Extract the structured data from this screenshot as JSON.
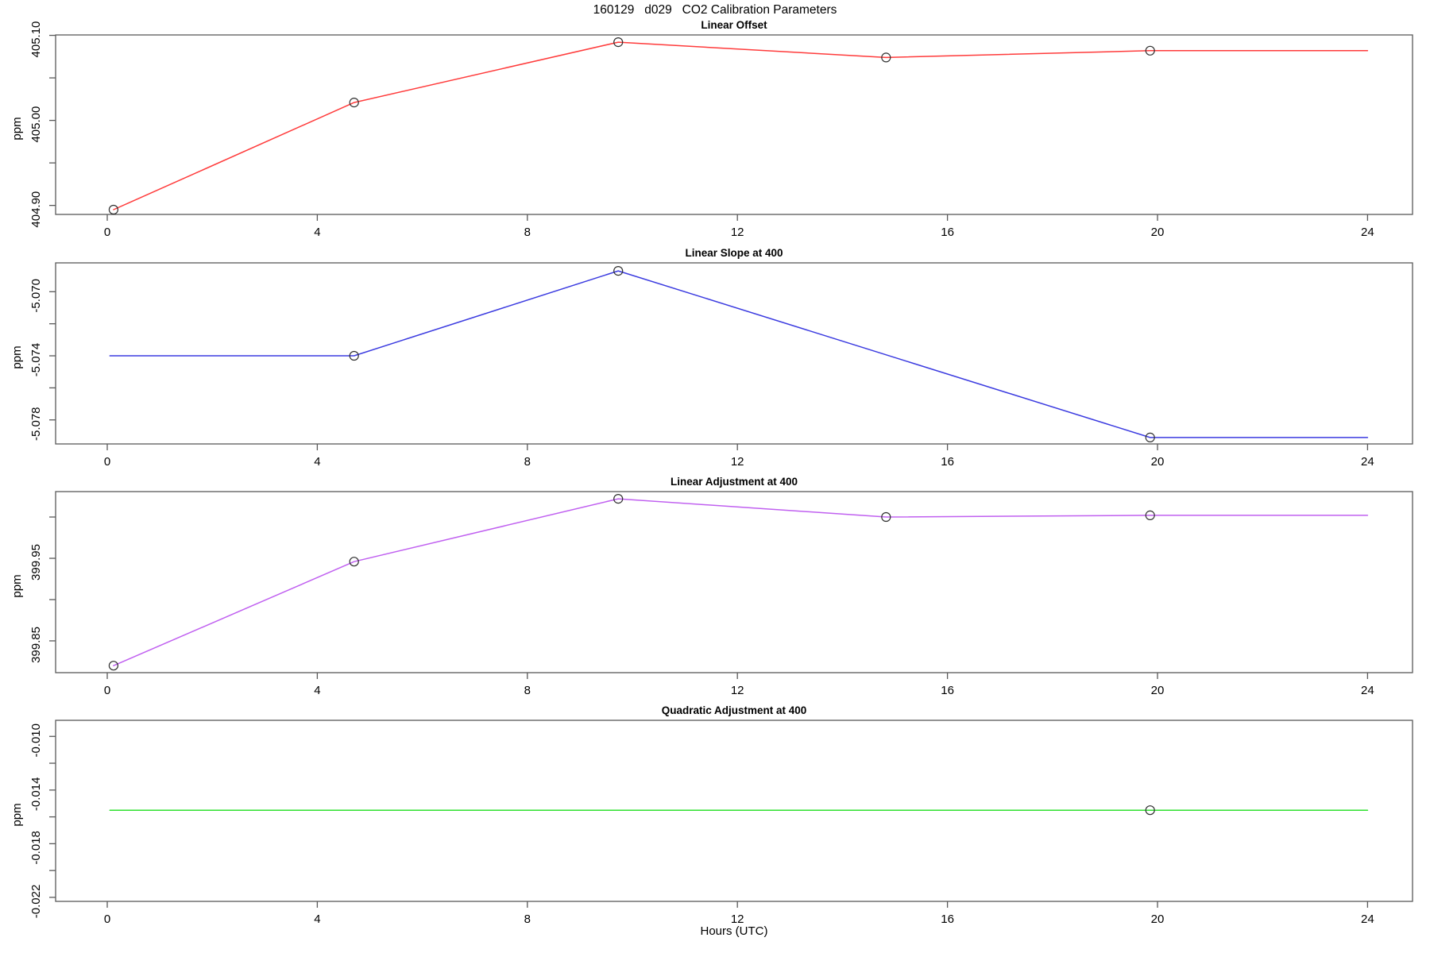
{
  "chart_data": {
    "type": "line",
    "title": "160129   d029   CO2 Calibration Parameters",
    "xlabel": "Hours (UTC)",
    "x_ticks": [
      0,
      4,
      8,
      12,
      16,
      20,
      24
    ],
    "xlim": [
      -0.98,
      24.88
    ],
    "marker_style": "open-circle",
    "grid": false,
    "legend": "none",
    "panels": [
      {
        "id": "linear-offset",
        "title": "Linear Offset",
        "ylabel": "ppm",
        "color": "#ff3b3b",
        "ylim": [
          404.8894,
          405.1005
        ],
        "yticks": [
          {
            "v": 404.9,
            "label": "404.90"
          },
          {
            "v": 404.95,
            "label": ""
          },
          {
            "v": 405.0,
            "label": "405.00"
          },
          {
            "v": 405.05,
            "label": ""
          },
          {
            "v": 405.1,
            "label": "405.10"
          }
        ],
        "line": [
          [
            0.12,
            404.895
          ],
          [
            4.7,
            405.021
          ],
          [
            9.73,
            405.092
          ],
          [
            14.83,
            405.074
          ],
          [
            19.86,
            405.082
          ],
          [
            24,
            405.082
          ]
        ],
        "markers": [
          [
            0.12,
            404.895
          ],
          [
            4.7,
            405.021
          ],
          [
            9.73,
            405.092
          ],
          [
            14.83,
            405.074
          ],
          [
            19.86,
            405.082
          ]
        ]
      },
      {
        "id": "linear-slope-at-400",
        "title": "Linear Slope at 400",
        "ylabel": "ppm",
        "color": "#3b3be0",
        "ylim": [
          -5.0795,
          -5.0682
        ],
        "yticks": [
          {
            "v": -5.078,
            "label": "-5.078"
          },
          {
            "v": -5.076,
            "label": ""
          },
          {
            "v": -5.074,
            "label": "-5.074"
          },
          {
            "v": -5.072,
            "label": ""
          },
          {
            "v": -5.07,
            "label": "-5.070"
          }
        ],
        "line": [
          [
            0.05,
            -5.074
          ],
          [
            4.7,
            -5.074
          ],
          [
            9.73,
            -5.0687
          ],
          [
            19.86,
            -5.0791
          ],
          [
            24,
            -5.0791
          ]
        ],
        "markers": [
          [
            4.7,
            -5.074
          ],
          [
            9.73,
            -5.0687
          ],
          [
            19.86,
            -5.0791
          ]
        ]
      },
      {
        "id": "linear-adjustment-at-400",
        "title": "Linear Adjustment at 400",
        "ylabel": "ppm",
        "color": "#c060f0",
        "ylim": [
          399.8115,
          400.0308
        ],
        "yticks": [
          {
            "v": 399.85,
            "label": "399.85"
          },
          {
            "v": 399.9,
            "label": ""
          },
          {
            "v": 399.95,
            "label": "399.95"
          },
          {
            "v": 400.0,
            "label": ""
          }
        ],
        "line": [
          [
            0.12,
            399.82
          ],
          [
            4.7,
            399.946
          ],
          [
            9.73,
            400.022
          ],
          [
            14.83,
            400.0
          ],
          [
            19.86,
            400.002
          ],
          [
            24,
            400.002
          ]
        ],
        "markers": [
          [
            0.12,
            399.82
          ],
          [
            4.7,
            399.946
          ],
          [
            9.73,
            400.022
          ],
          [
            14.83,
            400.0
          ],
          [
            19.86,
            400.002
          ]
        ]
      },
      {
        "id": "quadratic-adjustment-at-400",
        "title": "Quadratic Adjustment at 400",
        "ylabel": "ppm",
        "color": "#2ee02e",
        "ylim": [
          -0.0223,
          -0.0088
        ],
        "yticks": [
          {
            "v": -0.022,
            "label": "-0.022"
          },
          {
            "v": -0.02,
            "label": ""
          },
          {
            "v": -0.018,
            "label": "-0.018"
          },
          {
            "v": -0.016,
            "label": ""
          },
          {
            "v": -0.014,
            "label": "-0.014"
          },
          {
            "v": -0.012,
            "label": ""
          },
          {
            "v": -0.01,
            "label": "-0.010"
          }
        ],
        "line": [
          [
            0.05,
            -0.0155
          ],
          [
            24,
            -0.0155
          ]
        ],
        "markers": [
          [
            19.86,
            -0.0155
          ]
        ]
      }
    ]
  }
}
